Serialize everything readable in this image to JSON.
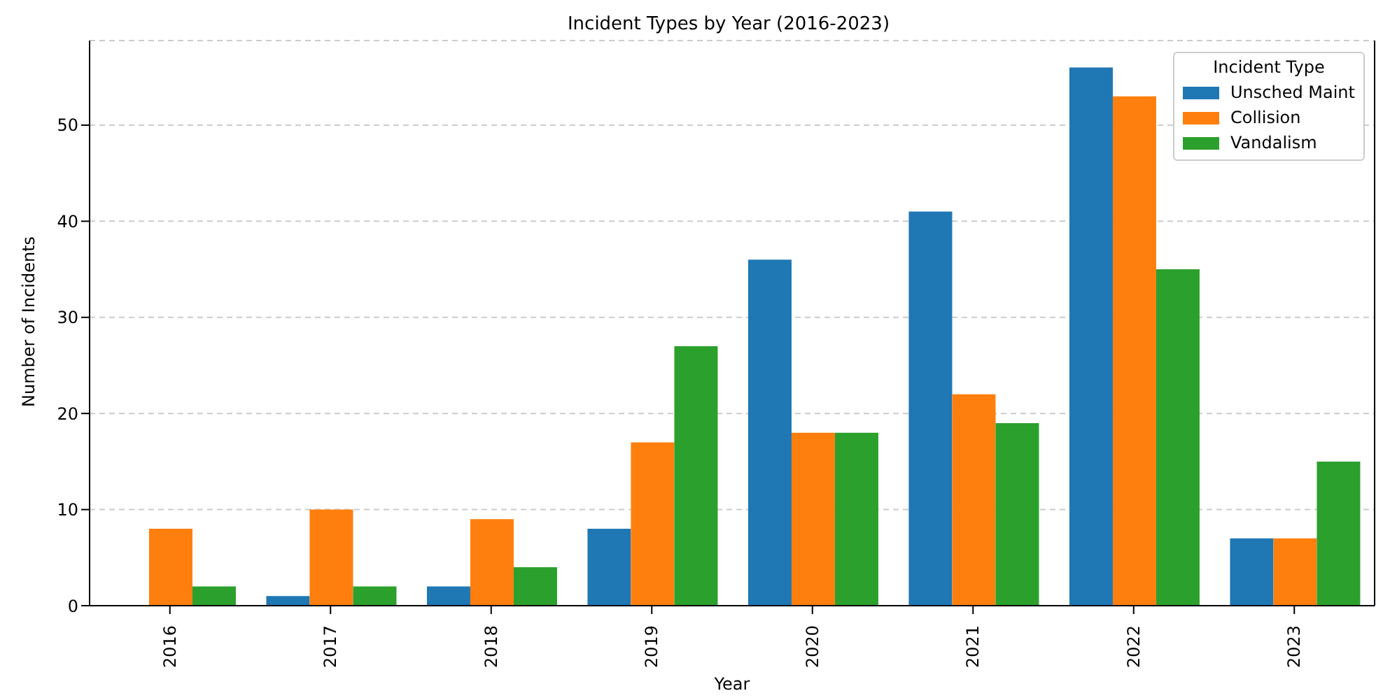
{
  "chart_data": {
    "type": "bar",
    "title": "Incident Types by Year (2016-2023)",
    "xlabel": "Year",
    "ylabel": "Number of Incidents",
    "legend_title": "Incident Type",
    "categories": [
      "2016",
      "2017",
      "2018",
      "2019",
      "2020",
      "2021",
      "2022",
      "2023"
    ],
    "series": [
      {
        "name": "Unsched Maint",
        "color": "#1f77b4",
        "values": [
          0,
          1,
          2,
          8,
          36,
          41,
          56,
          7
        ]
      },
      {
        "name": "Collision",
        "color": "#ff7f0e",
        "values": [
          8,
          10,
          9,
          17,
          18,
          22,
          53,
          7
        ]
      },
      {
        "name": "Vandalism",
        "color": "#2ca02c",
        "values": [
          2,
          2,
          4,
          27,
          18,
          19,
          35,
          15
        ]
      }
    ],
    "ylim": [
      0,
      58.8
    ],
    "yticks": [
      0,
      10,
      20,
      30,
      40,
      50
    ],
    "grid": "y",
    "legend": "top right"
  }
}
